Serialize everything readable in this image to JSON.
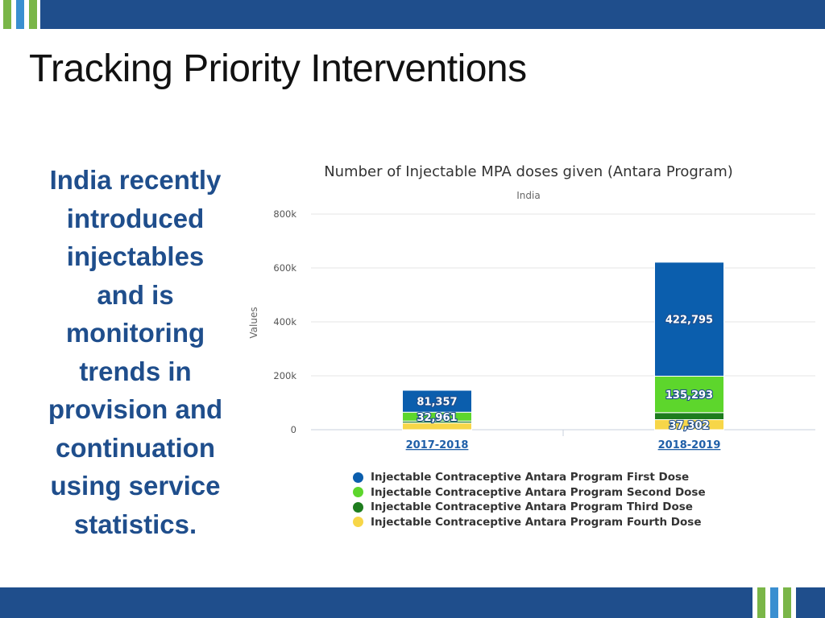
{
  "slide": {
    "title": "Tracking Priority Interventions",
    "side_text_lines": [
      "India recently",
      "introduced",
      "injectables",
      "and is",
      "monitoring",
      "trends in",
      "provision and",
      "continuation",
      "using service",
      "statistics."
    ]
  },
  "colors": {
    "bar_blue": "#1f4e8c",
    "stripe_colors": [
      "#7ab648",
      "#3a8fd0",
      "#7ab648"
    ],
    "side_text": "#1f4e8c"
  },
  "chart_data": {
    "type": "bar",
    "stacked": true,
    "title": "Number of Injectable MPA doses given (Antara Program)",
    "subtitle": "India",
    "xlabel": "",
    "ylabel": "Values",
    "ylim": [
      0,
      800000
    ],
    "yticks": [
      0,
      200000,
      400000,
      600000,
      800000
    ],
    "ytick_labels": [
      "0",
      "200k",
      "400k",
      "600k",
      "800k"
    ],
    "grid": true,
    "legend_position": "bottom",
    "categories": [
      "2017-2018",
      "2018-2019"
    ],
    "series": [
      {
        "name": "Injectable Contraceptive Antara Program Fourth Dose",
        "color": "#f7d648",
        "values": [
          25000,
          37302
        ],
        "labels": [
          "",
          "37,302"
        ]
      },
      {
        "name": "Injectable Contraceptive Antara Program Third Dose",
        "color": "#1e7d1e",
        "values": [
          7000,
          26000
        ],
        "labels": [
          "",
          ""
        ]
      },
      {
        "name": "Injectable Contraceptive Antara Program Second Dose",
        "color": "#5dd62c",
        "values": [
          32961,
          135293
        ],
        "labels": [
          "32,961",
          "135,293"
        ]
      },
      {
        "name": "Injectable Contraceptive Antara Program First Dose",
        "color": "#0b5ead",
        "values": [
          81357,
          422795
        ],
        "labels": [
          "81,357",
          "422,795"
        ]
      }
    ],
    "legend_order": [
      3,
      2,
      1,
      0
    ]
  }
}
